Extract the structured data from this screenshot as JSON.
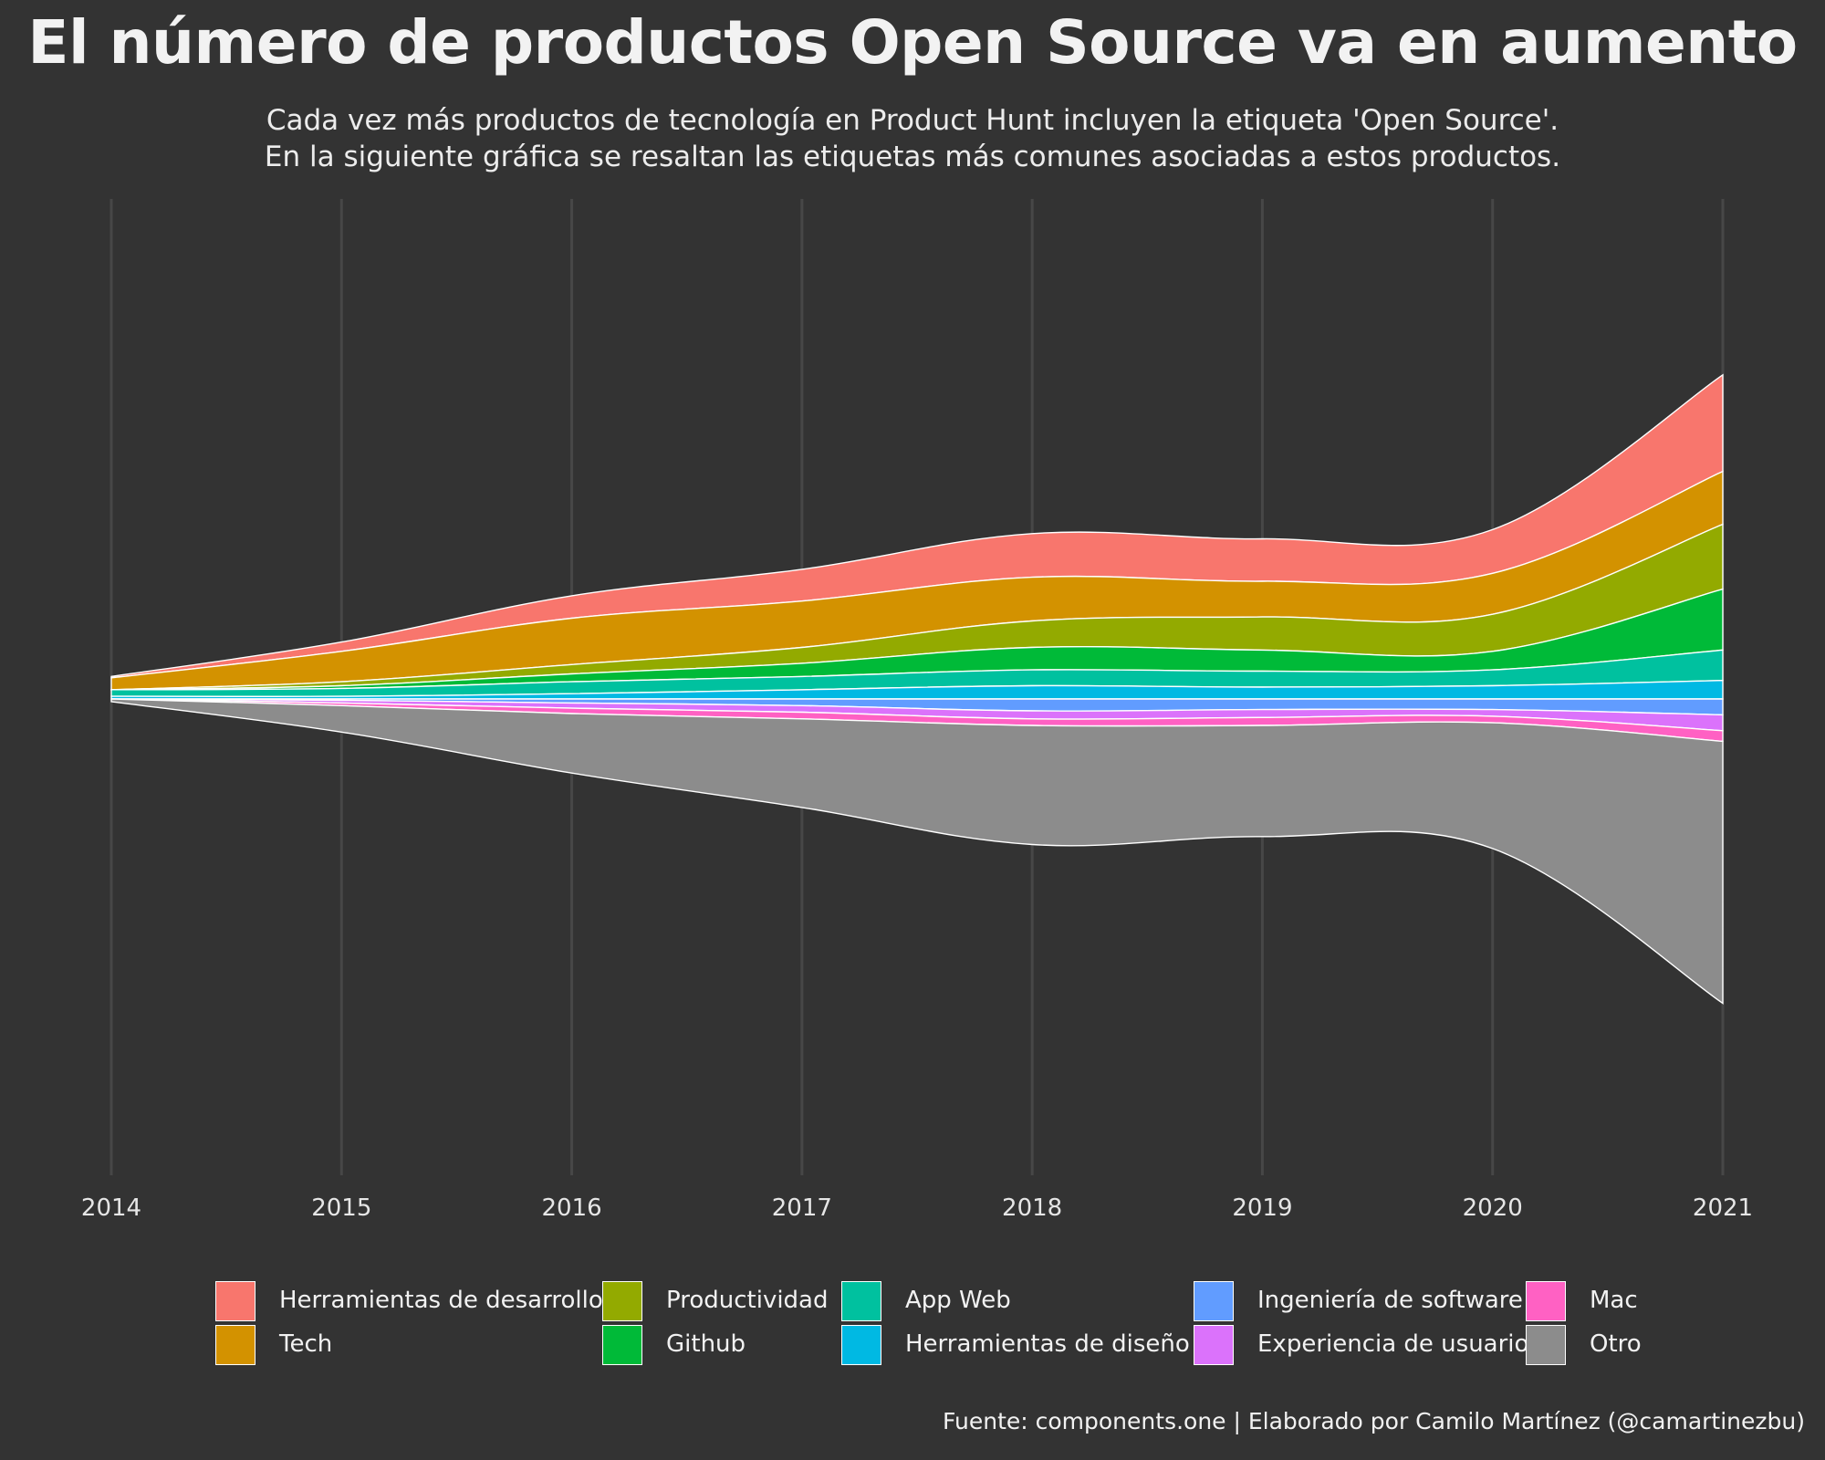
{
  "title": "El número de productos Open Source va en aumento",
  "subtitle_lines": [
    "Cada vez más productos de tecnología en Product Hunt incluyen la etiqueta 'Open Source'.",
    "En la siguiente gráfica se resaltan las etiquetas más comunes asociadas a estos productos."
  ],
  "caption": "Fuente: components.one | Elaborado por Camilo Martínez (@camartinezbu)",
  "colors": {
    "background": "#333333",
    "grid": "#474747",
    "stroke": "#ffffff"
  },
  "chart_data": {
    "type": "area",
    "subtype": "streamgraph",
    "title": "El número de productos Open Source va en aumento",
    "xlabel": "",
    "ylabel": "",
    "x": [
      2014,
      2015,
      2016,
      2017,
      2018,
      2019,
      2020,
      2021
    ],
    "xlim": [
      2014,
      2021
    ],
    "grid": "vertical",
    "legend_position": "bottom",
    "series": [
      {
        "name": "Herramientas de desarrollo",
        "color": "#F8766D",
        "values": [
          1,
          7,
          17,
          24,
          33,
          32,
          33,
          73
        ]
      },
      {
        "name": "Tech",
        "color": "#D39200",
        "values": [
          9,
          23,
          35,
          35,
          33,
          27,
          31,
          40
        ]
      },
      {
        "name": "Productividad",
        "color": "#93AA00",
        "values": [
          0,
          3,
          7,
          12,
          20,
          25,
          28,
          49
        ]
      },
      {
        "name": "Github",
        "color": "#00BA38",
        "values": [
          0,
          2,
          6,
          10,
          17,
          16,
          14,
          46
        ]
      },
      {
        "name": "App Web",
        "color": "#00C19F",
        "values": [
          5,
          6,
          9,
          10,
          12,
          12,
          12,
          23
        ]
      },
      {
        "name": "Herramientas de diseño",
        "color": "#00B9E3",
        "values": [
          2,
          2,
          4,
          7,
          10,
          9,
          10,
          14
        ]
      },
      {
        "name": "Ingeniería de software",
        "color": "#619CFF",
        "values": [
          0,
          1,
          3,
          5,
          9,
          8,
          8,
          12
        ]
      },
      {
        "name": "Experiencia de usuario",
        "color": "#DB72FB",
        "values": [
          0,
          2,
          4,
          5,
          6,
          6,
          5,
          12
        ]
      },
      {
        "name": "Mac",
        "color": "#FF61C3",
        "values": [
          0,
          2,
          4,
          5,
          5,
          6,
          5,
          8
        ]
      },
      {
        "name": "Otro",
        "color": "#8C8C8C",
        "values": [
          2,
          20,
          45,
          67,
          90,
          84,
          95,
          198
        ]
      }
    ]
  }
}
